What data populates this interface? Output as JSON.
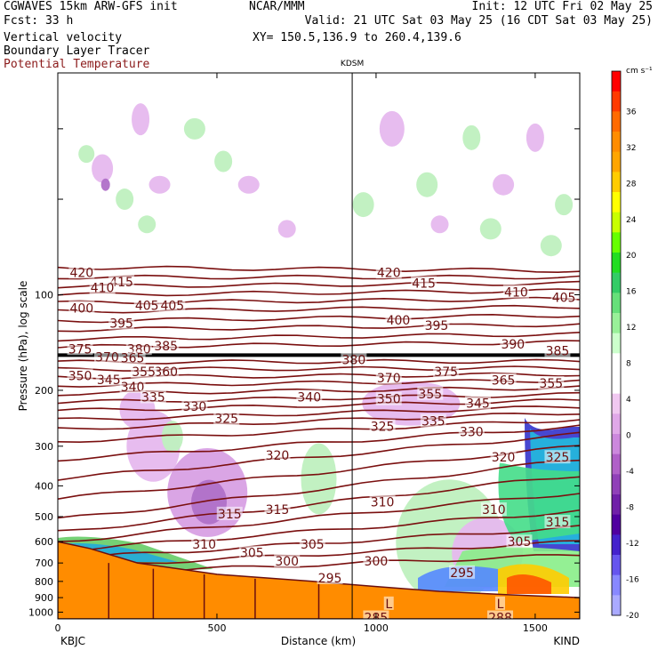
{
  "header": {
    "model_title": "CGWAVES 15km ARW-GFS init",
    "forecast": "Fcst:   33 h",
    "field_1": "Vertical velocity",
    "field_2": "Boundary Layer Tracer",
    "field_3": "Potential Temperature",
    "center": "NCAR/MMM",
    "init": "Init: 12 UTC Fri 02 May 25",
    "valid": "Valid: 21 UTC Sat 03 May 25 (16 CDT Sat 03 May 25)",
    "xy": "XY= 150.5,136.9 to 260.4,139.6"
  },
  "chart_data": {
    "type": "heatmap",
    "title": "",
    "xlabel": "Distance (km)",
    "ylabel": "Pressure (hPa), log scale",
    "x_range": [
      0,
      1640
    ],
    "y_range_hpa": [
      1050,
      20
    ],
    "y_scale": "log",
    "x_ticks": [
      0,
      500,
      1000,
      1500
    ],
    "x_tick_labels": [
      "0",
      "500",
      "1000",
      "1500"
    ],
    "y_ticks": [
      100,
      200,
      300,
      400,
      500,
      600,
      700,
      800,
      900,
      1000
    ],
    "y_tick_labels": [
      "100",
      "200",
      "300",
      "400",
      "500",
      "600",
      "700",
      "800",
      "900",
      "1000"
    ],
    "left_station": "KBJC",
    "right_station": "KIND",
    "marker_station": "KDSM",
    "marker_x_km": 925,
    "tropopause_hpa": 155,
    "colorbar": {
      "unit": "cm s⁻¹",
      "labels": [
        36,
        32,
        28,
        24,
        20,
        16,
        12,
        8,
        4,
        0,
        -4,
        -8,
        -12,
        -16,
        -20
      ],
      "colors": [
        "#ff0000",
        "#ff3a00",
        "#ff6a00",
        "#ff8c00",
        "#ffa500",
        "#ffcc00",
        "#ffff00",
        "#c8ff00",
        "#66ff00",
        "#22dd22",
        "#33cc66",
        "#66e07a",
        "#99f099",
        "#ccffcc",
        "#ffffff",
        "#ffffff",
        "#f0c8f0",
        "#e0a8e8",
        "#cc88dd",
        "#b060c8",
        "#9040b8",
        "#7020a8",
        "#5000a0",
        "#4422cc",
        "#6655ee",
        "#8888ff",
        "#aaaaff"
      ]
    },
    "theta_labels": [
      {
        "v": "420",
        "x": 75,
        "p": 85
      },
      {
        "v": "415",
        "x": 200,
        "p": 91
      },
      {
        "v": "410",
        "x": 140,
        "p": 95
      },
      {
        "v": "405",
        "x": 280,
        "p": 108
      },
      {
        "v": "405",
        "x": 360,
        "p": 108
      },
      {
        "v": "400",
        "x": 75,
        "p": 110
      },
      {
        "v": "395",
        "x": 200,
        "p": 123
      },
      {
        "v": "385",
        "x": 340,
        "p": 145
      },
      {
        "v": "380",
        "x": 255,
        "p": 148
      },
      {
        "v": "375",
        "x": 70,
        "p": 148
      },
      {
        "v": "370",
        "x": 155,
        "p": 157
      },
      {
        "v": "365",
        "x": 235,
        "p": 158
      },
      {
        "v": "360",
        "x": 340,
        "p": 175
      },
      {
        "v": "355",
        "x": 270,
        "p": 175
      },
      {
        "v": "350",
        "x": 70,
        "p": 180
      },
      {
        "v": "345",
        "x": 160,
        "p": 185
      },
      {
        "v": "340",
        "x": 235,
        "p": 195
      },
      {
        "v": "335",
        "x": 300,
        "p": 210
      },
      {
        "v": "330",
        "x": 430,
        "p": 225
      },
      {
        "v": "325",
        "x": 530,
        "p": 245
      },
      {
        "v": "340",
        "x": 790,
        "p": 210
      },
      {
        "v": "320",
        "x": 690,
        "p": 320
      },
      {
        "v": "315",
        "x": 540,
        "p": 490
      },
      {
        "v": "315",
        "x": 690,
        "p": 475
      },
      {
        "v": "310",
        "x": 460,
        "p": 610
      },
      {
        "v": "305",
        "x": 610,
        "p": 650
      },
      {
        "v": "300",
        "x": 720,
        "p": 690
      },
      {
        "v": "305",
        "x": 800,
        "p": 610
      },
      {
        "v": "295",
        "x": 855,
        "p": 780
      },
      {
        "v": "420",
        "x": 1040,
        "p": 85
      },
      {
        "v": "415",
        "x": 1150,
        "p": 92
      },
      {
        "v": "410",
        "x": 1440,
        "p": 98
      },
      {
        "v": "405",
        "x": 1590,
        "p": 102
      },
      {
        "v": "400",
        "x": 1070,
        "p": 120
      },
      {
        "v": "395",
        "x": 1190,
        "p": 125
      },
      {
        "v": "390",
        "x": 1430,
        "p": 143
      },
      {
        "v": "385",
        "x": 1570,
        "p": 150
      },
      {
        "v": "380",
        "x": 930,
        "p": 160
      },
      {
        "v": "375",
        "x": 1220,
        "p": 175
      },
      {
        "v": "370",
        "x": 1040,
        "p": 183
      },
      {
        "v": "365",
        "x": 1400,
        "p": 186
      },
      {
        "v": "355",
        "x": 1170,
        "p": 205
      },
      {
        "v": "355",
        "x": 1550,
        "p": 190
      },
      {
        "v": "350",
        "x": 1040,
        "p": 213
      },
      {
        "v": "345",
        "x": 1320,
        "p": 220
      },
      {
        "v": "335",
        "x": 1180,
        "p": 250
      },
      {
        "v": "330",
        "x": 1300,
        "p": 270
      },
      {
        "v": "325",
        "x": 1020,
        "p": 260
      },
      {
        "v": "320",
        "x": 1400,
        "p": 325
      },
      {
        "v": "325",
        "x": 1570,
        "p": 325
      },
      {
        "v": "310",
        "x": 1020,
        "p": 450
      },
      {
        "v": "310",
        "x": 1370,
        "p": 475
      },
      {
        "v": "305",
        "x": 1450,
        "p": 600
      },
      {
        "v": "315",
        "x": 1570,
        "p": 520
      },
      {
        "v": "300",
        "x": 1000,
        "p": 690
      },
      {
        "v": "295",
        "x": 1270,
        "p": 750
      },
      {
        "v": "285",
        "x": 1000,
        "p": 1040
      },
      {
        "v": "288",
        "x": 1390,
        "p": 1040
      },
      {
        "v": "L",
        "x": 1040,
        "p": 940
      },
      {
        "v": "L",
        "x": 1390,
        "p": 940
      }
    ],
    "theta_lines": [
      {
        "p0": 82,
        "p1": 84
      },
      {
        "p0": 88,
        "p1": 88
      },
      {
        "p0": 94,
        "p1": 92
      },
      {
        "p0": 100,
        "p1": 97
      },
      {
        "p0": 106,
        "p1": 103
      },
      {
        "p0": 113,
        "p1": 109
      },
      {
        "p0": 121,
        "p1": 116
      },
      {
        "p0": 129,
        "p1": 124
      },
      {
        "p0": 138,
        "p1": 133
      },
      {
        "p0": 146,
        "p1": 141
      },
      {
        "p0": 163,
        "p1": 162
      },
      {
        "p0": 172,
        "p1": 170
      },
      {
        "p0": 182,
        "p1": 178
      },
      {
        "p0": 193,
        "p1": 186
      },
      {
        "p0": 205,
        "p1": 196
      },
      {
        "p0": 218,
        "p1": 206
      },
      {
        "p0": 232,
        "p1": 215
      },
      {
        "p0": 248,
        "p1": 225
      },
      {
        "p0": 265,
        "p1": 235
      },
      {
        "p0": 290,
        "p1": 247
      },
      {
        "p0": 330,
        "p1": 260
      },
      {
        "p0": 380,
        "p1": 275
      },
      {
        "p0": 440,
        "p1": 300
      },
      {
        "p0": 510,
        "p1": 330
      },
      {
        "p0": 560,
        "p1": 370
      },
      {
        "p0": 600,
        "p1": 420
      },
      {
        "p0": 640,
        "p1": 480
      },
      {
        "p0": 680,
        "p1": 540
      },
      {
        "p0": 720,
        "p1": 600
      },
      {
        "p0": 760,
        "p1": 660
      }
    ]
  }
}
